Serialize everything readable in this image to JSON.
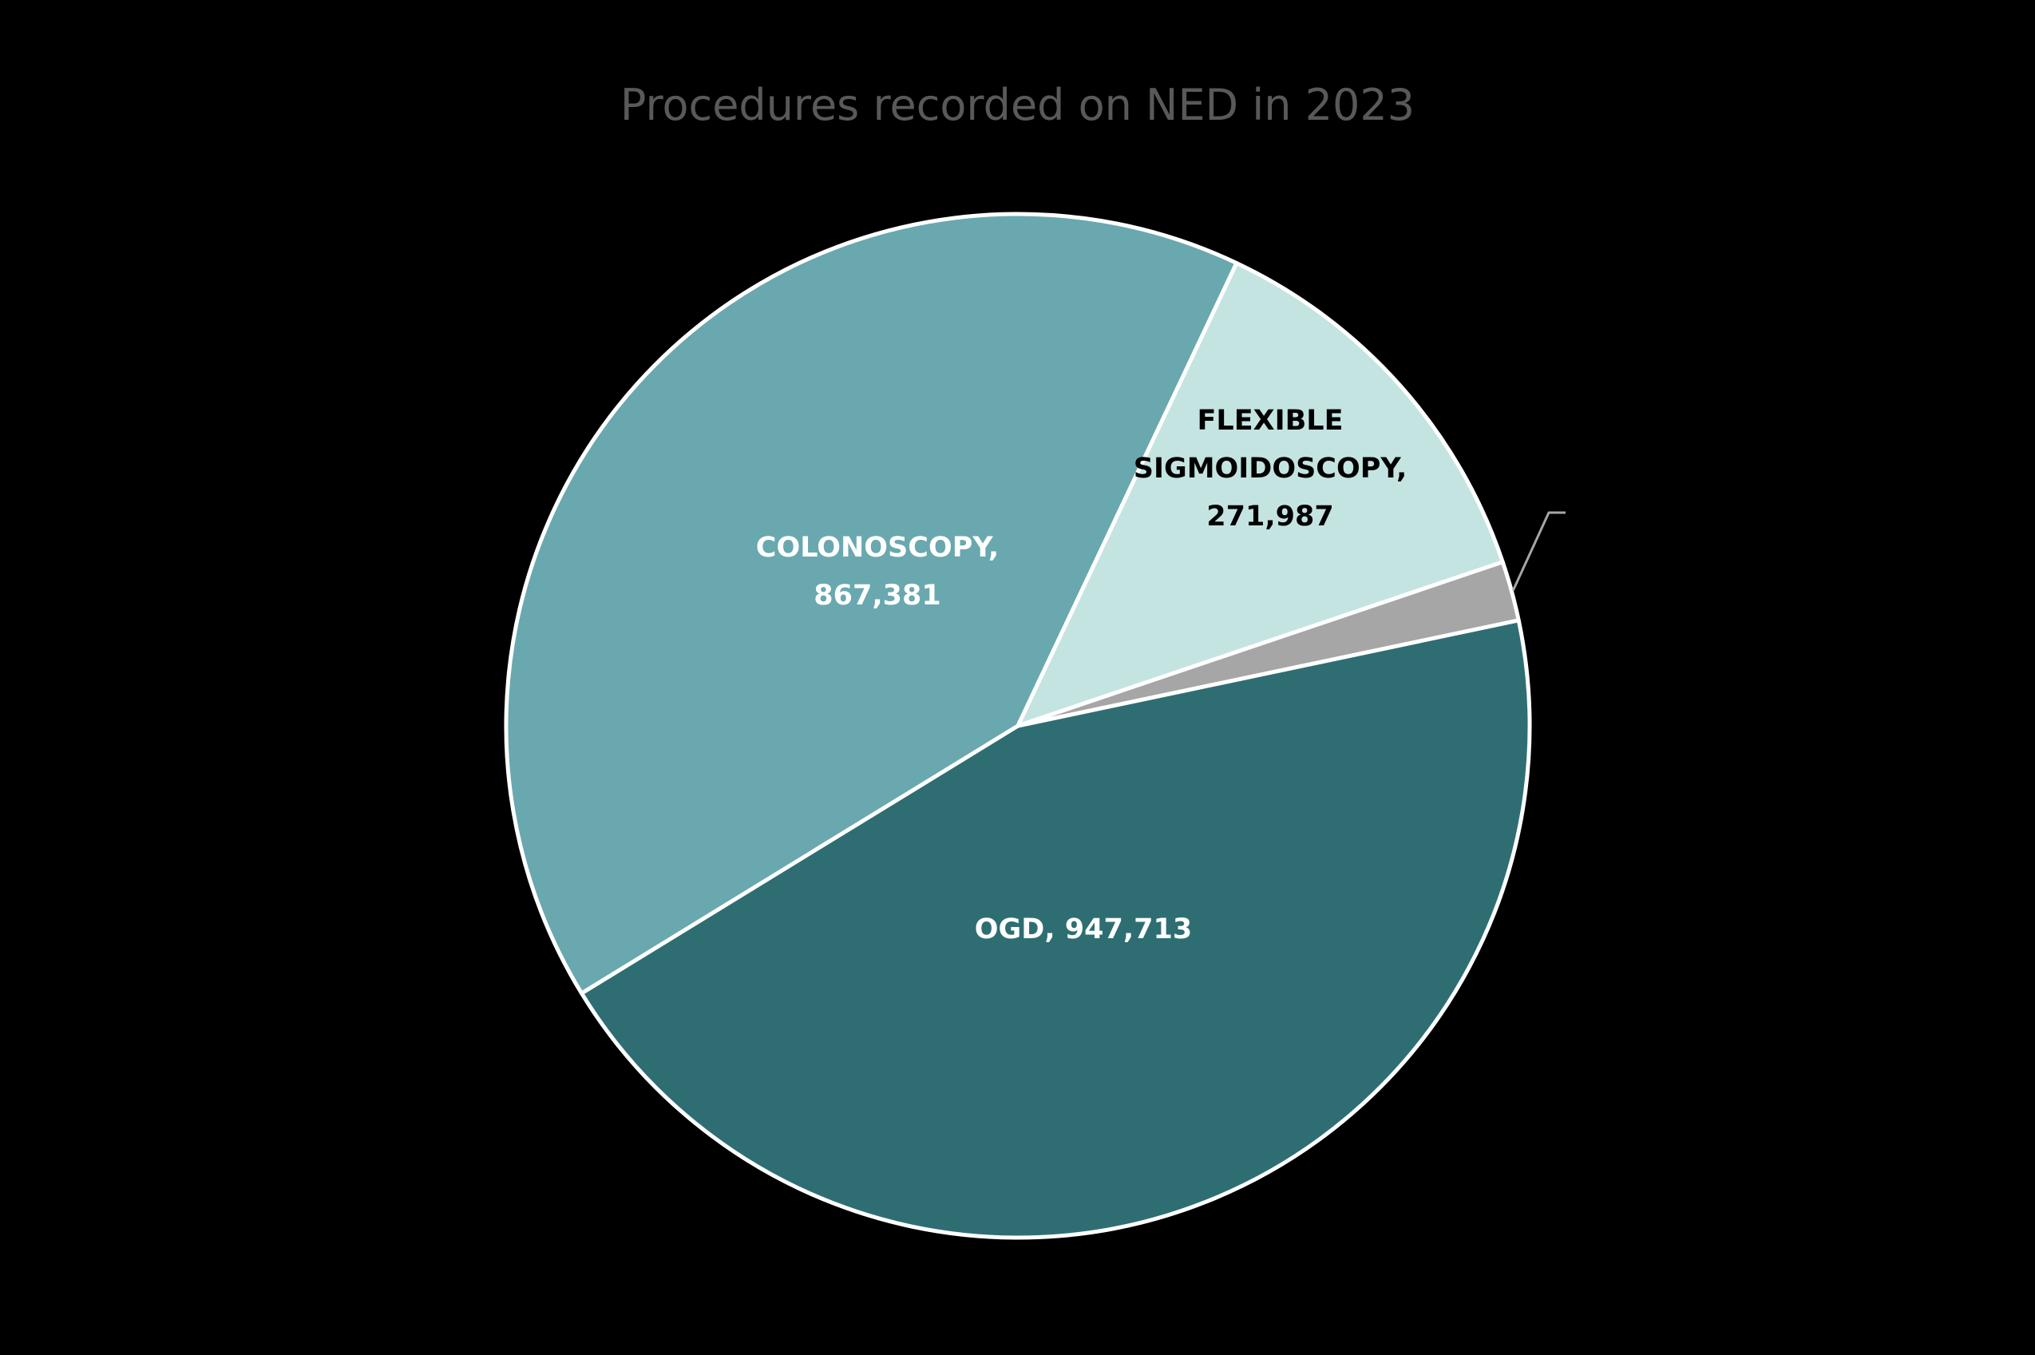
{
  "chart_data": {
    "type": "pie",
    "title": "Procedures recorded on NED in 2023",
    "start_angle_deg_clockwise_from_top": 78.1,
    "slices": [
      {
        "name": "OGD",
        "value": 947713,
        "label": "OGD, 947,713",
        "color": "#2E6E73",
        "label_color": "#FFFFFF"
      },
      {
        "name": "COLONOSCOPY",
        "value": 867381,
        "label_lines": [
          "COLONOSCOPY,",
          "867,381"
        ],
        "color": "#69A8AE",
        "label_color": "#FFFFFF"
      },
      {
        "name": "FLEXIBLE SIGMOIDOSCOPY",
        "value": 271987,
        "label_lines": [
          "FLEXIBLE",
          "SIGMOIDOSCOPY,",
          "271,987"
        ],
        "color": "#C4E4E2",
        "label_color": "#000000"
      },
      {
        "name": "",
        "value": 40000,
        "value_is_estimate": true,
        "label": null,
        "color": "#A6A6A6",
        "has_leader_line": true
      }
    ],
    "legend": null,
    "border_color": "#FFFFFF",
    "background": "#000000"
  }
}
